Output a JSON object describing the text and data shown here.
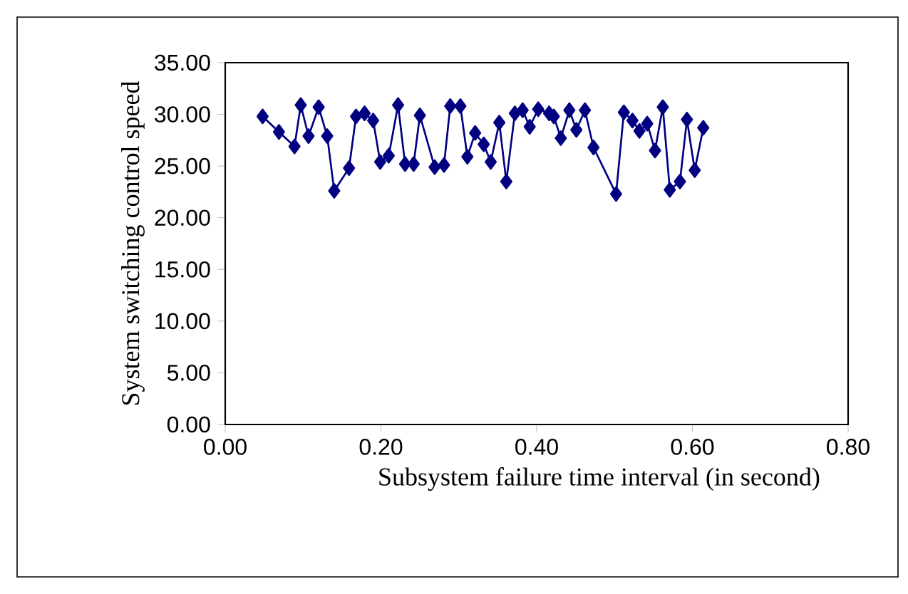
{
  "chart_data": {
    "type": "line",
    "xlabel": "Subsystem failure time interval (in second)",
    "ylabel": "System switching control speed",
    "x": [
      0.048,
      0.069,
      0.089,
      0.097,
      0.107,
      0.12,
      0.131,
      0.14,
      0.159,
      0.168,
      0.179,
      0.19,
      0.199,
      0.21,
      0.222,
      0.231,
      0.242,
      0.25,
      0.269,
      0.281,
      0.289,
      0.302,
      0.311,
      0.321,
      0.332,
      0.341,
      0.352,
      0.361,
      0.372,
      0.382,
      0.391,
      0.402,
      0.416,
      0.422,
      0.431,
      0.442,
      0.451,
      0.462,
      0.473,
      0.502,
      0.512,
      0.523,
      0.532,
      0.542,
      0.552,
      0.562,
      0.571,
      0.584,
      0.593,
      0.603,
      0.614
    ],
    "series": [
      {
        "color": "#000080",
        "values": [
          29.8,
          28.3,
          26.9,
          30.9,
          27.9,
          30.7,
          27.9,
          22.6,
          24.8,
          29.8,
          30.1,
          29.4,
          25.4,
          26.0,
          30.9,
          25.2,
          25.2,
          29.9,
          24.9,
          25.1,
          30.8,
          30.8,
          25.9,
          28.2,
          27.1,
          25.4,
          29.2,
          23.5,
          30.1,
          30.4,
          28.8,
          30.5,
          30.1,
          29.8,
          27.7,
          30.4,
          28.5,
          30.4,
          26.8,
          22.3,
          30.2,
          29.4,
          28.4,
          29.1,
          26.5,
          30.7,
          22.7,
          23.5,
          29.5,
          24.6,
          28.7
        ]
      }
    ],
    "marker": "diamond",
    "line_style": "solid",
    "xlim": [
      0,
      0.8
    ],
    "xticks": [
      {
        "value": 0,
        "label": "0.00"
      },
      {
        "value": 0.2,
        "label": "0.20"
      },
      {
        "value": 0.4,
        "label": "0.40"
      },
      {
        "value": 0.6,
        "label": "0.60"
      },
      {
        "value": 0.8,
        "label": "0.80"
      }
    ],
    "ylim": [
      0,
      35
    ],
    "yticks": [
      {
        "value": 0,
        "label": "0.00"
      },
      {
        "value": 5,
        "label": "5.00"
      },
      {
        "value": 10,
        "label": "10.00"
      },
      {
        "value": 15,
        "label": "15.00"
      },
      {
        "value": 20,
        "label": "20.00"
      },
      {
        "value": 25,
        "label": "25.00"
      },
      {
        "value": 30,
        "label": "30.00"
      },
      {
        "value": 35,
        "label": "35.00"
      }
    ]
  }
}
